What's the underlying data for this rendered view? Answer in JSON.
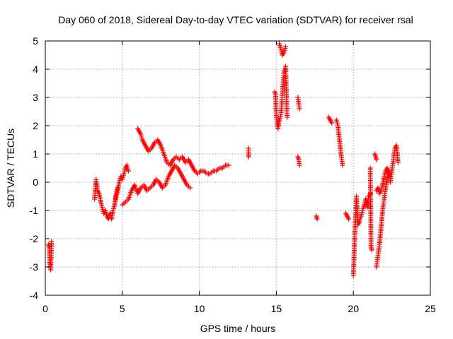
{
  "colors": {
    "series": "#ff0000",
    "grid": "#a0a0a0",
    "axis": "#000000"
  },
  "chart_data": {
    "type": "scatter",
    "title": "Day 060 of 2018, Sidereal Day-to-day VTEC variation (SDTVAR) for receiver rsal",
    "xlabel": "GPS time / hours",
    "ylabel": "SDTVAR / TECUs",
    "xlim": [
      0,
      25
    ],
    "ylim": [
      -4,
      5
    ],
    "xticks": [
      0,
      5,
      10,
      15,
      20,
      25
    ],
    "yticks": [
      -4,
      -3,
      -2,
      -1,
      0,
      1,
      2,
      3,
      4,
      5
    ],
    "grid": true,
    "marker": "plus",
    "series": [
      {
        "name": "SDTVAR",
        "segments": [
          {
            "x": [
              0.2,
              0.25,
              0.3,
              0.35,
              0.4
            ],
            "y": [
              -2.2,
              -2.3,
              -2.9,
              -3.1,
              -2.1
            ]
          },
          {
            "x": [
              3.2,
              3.3,
              3.4,
              3.5,
              3.6,
              3.7,
              3.8,
              3.9,
              4.0,
              4.1,
              4.2,
              4.3,
              4.4,
              4.5,
              4.6,
              4.7
            ],
            "y": [
              -0.6,
              0.1,
              -0.3,
              -0.4,
              -0.7,
              -0.9,
              -1.1,
              -1.0,
              -1.2,
              -1.3,
              -1.1,
              -1.3,
              -1.0,
              -0.8,
              -0.4,
              -0.2
            ]
          },
          {
            "x": [
              4.5,
              4.6,
              4.7,
              4.8,
              4.9,
              5.0,
              5.1,
              5.2,
              5.3,
              5.4
            ],
            "y": [
              -0.8,
              -0.5,
              -0.3,
              0.0,
              0.2,
              0.1,
              0.3,
              0.5,
              0.6,
              0.4
            ]
          },
          {
            "x": [
              5.0,
              5.2,
              5.4,
              5.6,
              5.8,
              6.0,
              6.2,
              6.4,
              6.6,
              6.8,
              7.0,
              7.2,
              7.4,
              7.6,
              7.8,
              8.0,
              8.2,
              8.4,
              8.6,
              8.8,
              9.0,
              9.2,
              9.4
            ],
            "y": [
              -0.8,
              -0.7,
              -0.6,
              -0.3,
              -0.1,
              -0.4,
              -0.2,
              -0.1,
              -0.3,
              -0.2,
              -0.1,
              0.1,
              0.0,
              -0.2,
              -0.1,
              0.2,
              0.4,
              0.6,
              0.5,
              0.3,
              0.1,
              -0.1,
              -0.2
            ]
          },
          {
            "x": [
              6.0,
              6.1,
              6.2,
              6.3,
              6.5,
              6.7,
              6.9,
              7.1,
              7.3,
              7.5,
              7.7,
              7.9,
              8.1,
              8.3,
              8.5,
              8.7,
              8.9,
              9.1,
              9.3,
              9.5,
              9.7,
              9.9,
              10.1,
              10.3,
              10.5,
              10.7,
              10.9,
              11.1,
              11.3,
              11.5,
              11.7,
              11.9
            ],
            "y": [
              1.9,
              1.8,
              1.7,
              1.5,
              1.3,
              1.1,
              1.2,
              1.4,
              1.5,
              1.3,
              1.0,
              0.7,
              0.6,
              0.8,
              0.9,
              0.8,
              0.9,
              0.7,
              0.8,
              0.6,
              0.4,
              0.3,
              0.4,
              0.4,
              0.3,
              0.3,
              0.4,
              0.4,
              0.5,
              0.5,
              0.6,
              0.6
            ]
          },
          {
            "x": [
              13.2,
              13.2,
              13.2
            ],
            "y": [
              1.2,
              1.0,
              0.9
            ]
          },
          {
            "x": [
              14.9,
              14.95,
              15.0,
              15.05,
              15.1
            ],
            "y": [
              3.2,
              3.1,
              2.3,
              2.1,
              1.9
            ]
          },
          {
            "x": [
              15.1,
              15.2,
              15.3,
              15.35,
              15.4,
              15.5,
              15.6,
              15.7
            ],
            "y": [
              1.9,
              2.2,
              2.4,
              2.8,
              3.2,
              3.9,
              4.1,
              2.3
            ]
          },
          {
            "x": [
              15.2,
              15.3,
              15.4,
              15.5,
              15.6
            ],
            "y": [
              4.9,
              4.7,
              4.5,
              4.6,
              4.8
            ]
          },
          {
            "x": [
              16.4,
              16.45,
              16.5
            ],
            "y": [
              3.0,
              2.8,
              2.6
            ]
          },
          {
            "x": [
              16.4,
              16.45,
              16.5
            ],
            "y": [
              0.9,
              0.8,
              0.6
            ]
          },
          {
            "x": [
              17.6,
              17.65
            ],
            "y": [
              -1.2,
              -1.3
            ]
          },
          {
            "x": [
              18.4,
              18.5,
              18.6
            ],
            "y": [
              2.3,
              2.2,
              2.1
            ]
          },
          {
            "x": [
              18.9,
              19.0,
              19.1,
              19.2,
              19.3
            ],
            "y": [
              2.2,
              2.0,
              1.5,
              1.0,
              0.6
            ]
          },
          {
            "x": [
              19.5,
              19.6,
              19.7
            ],
            "y": [
              -1.1,
              -1.2,
              -1.3
            ]
          },
          {
            "x": [
              20.0,
              20.05,
              20.1,
              20.15,
              20.2,
              20.3,
              20.4,
              20.5,
              20.6,
              20.7,
              20.8,
              20.9,
              21.0,
              21.1
            ],
            "y": [
              -3.3,
              -2.6,
              -1.8,
              -1.2,
              -0.5,
              -1.5,
              -1.4,
              -1.2,
              -1.0,
              -0.8,
              -0.6,
              -0.9,
              -0.5,
              -0.4
            ]
          },
          {
            "x": [
              21.1,
              21.15,
              21.2
            ],
            "y": [
              0.5,
              -2.3,
              -2.4
            ]
          },
          {
            "x": [
              21.4,
              21.45,
              21.5
            ],
            "y": [
              1.0,
              0.9,
              0.8
            ]
          },
          {
            "x": [
              21.5,
              21.6,
              21.7,
              21.8,
              21.9,
              22.0,
              22.1,
              22.2,
              22.3
            ],
            "y": [
              -3.0,
              -2.6,
              -2.2,
              -1.6,
              -1.0,
              -0.6,
              -0.2,
              0.1,
              0.4
            ]
          },
          {
            "x": [
              21.5,
              21.6,
              21.7,
              21.8,
              21.9,
              22.0,
              22.1,
              22.2,
              22.3,
              22.4
            ],
            "y": [
              -0.3,
              -0.2,
              -0.4,
              -0.3,
              -0.1,
              0.2,
              0.4,
              0.5,
              0.3,
              0.2
            ]
          },
          {
            "x": [
              22.4,
              22.5,
              22.6,
              22.7,
              22.8,
              22.9
            ],
            "y": [
              0.0,
              0.4,
              0.8,
              1.2,
              1.3,
              0.7
            ]
          }
        ]
      }
    ]
  }
}
